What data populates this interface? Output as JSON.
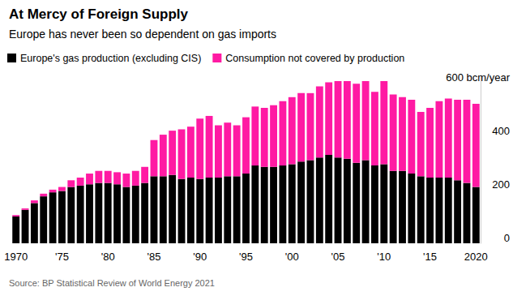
{
  "chart_data": {
    "type": "bar",
    "title": "At Mercy of Foreign Supply",
    "subtitle": "Europe has never been so dependent on gas imports",
    "source": "Source: BP Statistical Review of World Energy 2021",
    "stacked": true,
    "grid": false,
    "legend": "top-left",
    "categories": [
      "1970",
      null,
      null,
      null,
      null,
      "'75",
      null,
      null,
      null,
      null,
      "'80",
      null,
      null,
      null,
      null,
      "'85",
      null,
      null,
      null,
      null,
      "'90",
      null,
      null,
      null,
      null,
      "'95",
      null,
      null,
      null,
      null,
      "'00",
      null,
      null,
      null,
      null,
      "'05",
      null,
      null,
      null,
      null,
      "'10",
      null,
      null,
      null,
      null,
      "'15",
      null,
      null,
      null,
      null,
      "2020"
    ],
    "series": [
      {
        "name": "Europe's gas production (excluding CIS)",
        "color": "#000000",
        "values": [
          100,
          125,
          150,
          175,
          190,
          195,
          210,
          215,
          220,
          225,
          225,
          220,
          210,
          215,
          225,
          250,
          250,
          255,
          240,
          245,
          240,
          245,
          245,
          250,
          250,
          260,
          290,
          285,
          285,
          290,
          295,
          305,
          310,
          320,
          330,
          320,
          315,
          300,
          310,
          290,
          295,
          270,
          270,
          260,
          250,
          245,
          245,
          245,
          235,
          225,
          210
        ]
      },
      {
        "name": "Consumption not covered by production",
        "color": "#ff1aa3",
        "values": [
          5,
          5,
          10,
          10,
          10,
          15,
          25,
          30,
          40,
          45,
          45,
          45,
          50,
          55,
          60,
          135,
          155,
          165,
          185,
          190,
          225,
          230,
          195,
          200,
          190,
          210,
          220,
          220,
          230,
          240,
          250,
          255,
          250,
          265,
          270,
          285,
          290,
          295,
          295,
          275,
          310,
          285,
          275,
          275,
          240,
          260,
          285,
          295,
          300,
          310,
          310
        ]
      }
    ],
    "ylim": [
      0,
      620
    ],
    "yticks": [
      0,
      200,
      400,
      {
        "value": 600,
        "label": "600 bcm/year"
      }
    ]
  }
}
